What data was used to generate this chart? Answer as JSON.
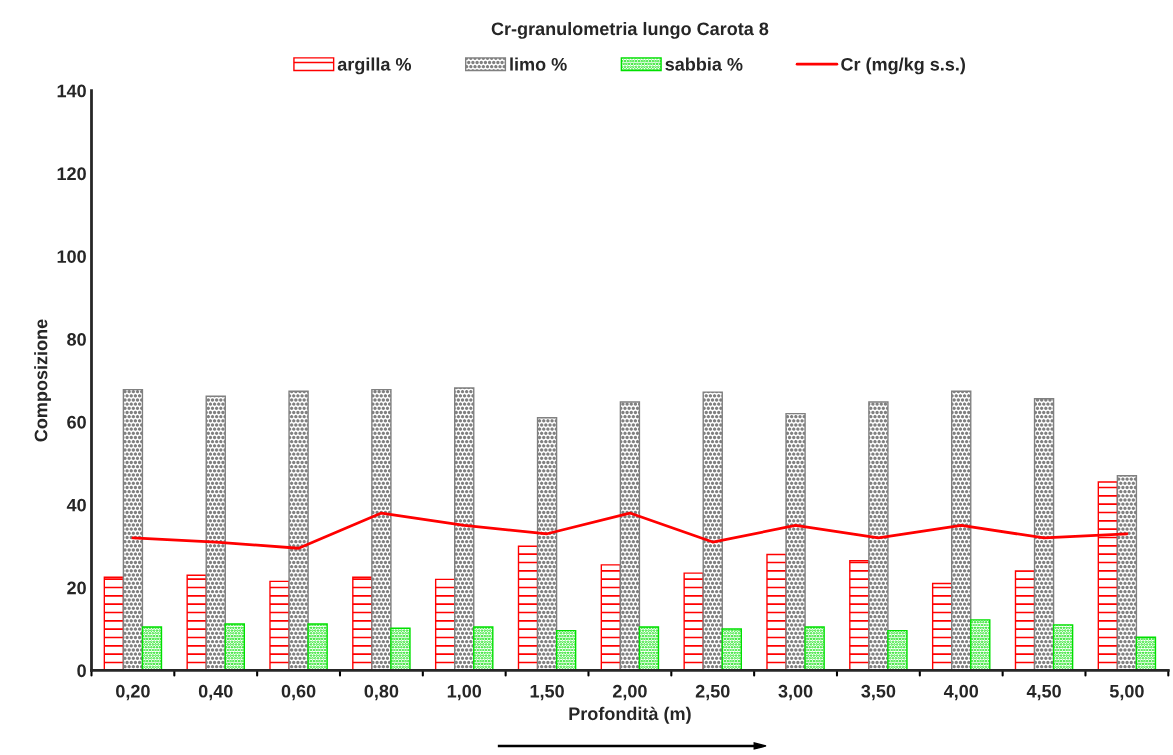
{
  "chart_data": {
    "type": "bar",
    "title": "Cr-granulometria lungo Carota 8",
    "xlabel": "Profondità (m)",
    "ylabel": "Composizione",
    "categories": [
      "0,20",
      "0,40",
      "0,60",
      "0,80",
      "1,00",
      "1,50",
      "2,00",
      "2,50",
      "3,00",
      "3,50",
      "4,00",
      "4,50",
      "5,00"
    ],
    "series": [
      {
        "name": "argilla %",
        "color": "#ff0000",
        "values": [
          22.5,
          23,
          21.5,
          22.5,
          22,
          30,
          25.5,
          23.5,
          28,
          26.5,
          21,
          24,
          45.5
        ]
      },
      {
        "name": "limo %",
        "color": "#808080",
        "values": [
          67.8,
          66.2,
          67.4,
          67.8,
          68.2,
          61,
          64.8,
          67.2,
          62,
          64.8,
          67.4,
          65.6,
          47
        ]
      },
      {
        "name": "sabbia %",
        "color": "#00e000",
        "values": [
          10.5,
          11.2,
          11.2,
          10.2,
          10.5,
          9.6,
          10.5,
          10,
          10.5,
          9.6,
          12.2,
          11,
          8
        ]
      },
      {
        "name": "Cr (mg/kg s.s.)",
        "type": "line",
        "color": "#ff0000",
        "values": [
          32,
          31,
          29.5,
          38,
          35,
          33,
          38,
          31,
          35,
          32,
          35,
          32,
          33
        ]
      }
    ],
    "ylim": [
      0,
      140
    ],
    "yticks": [
      0,
      20,
      40,
      60,
      80,
      100,
      120,
      140
    ],
    "grid": false,
    "legend": "top",
    "marker": "none",
    "line_style": "solid"
  }
}
